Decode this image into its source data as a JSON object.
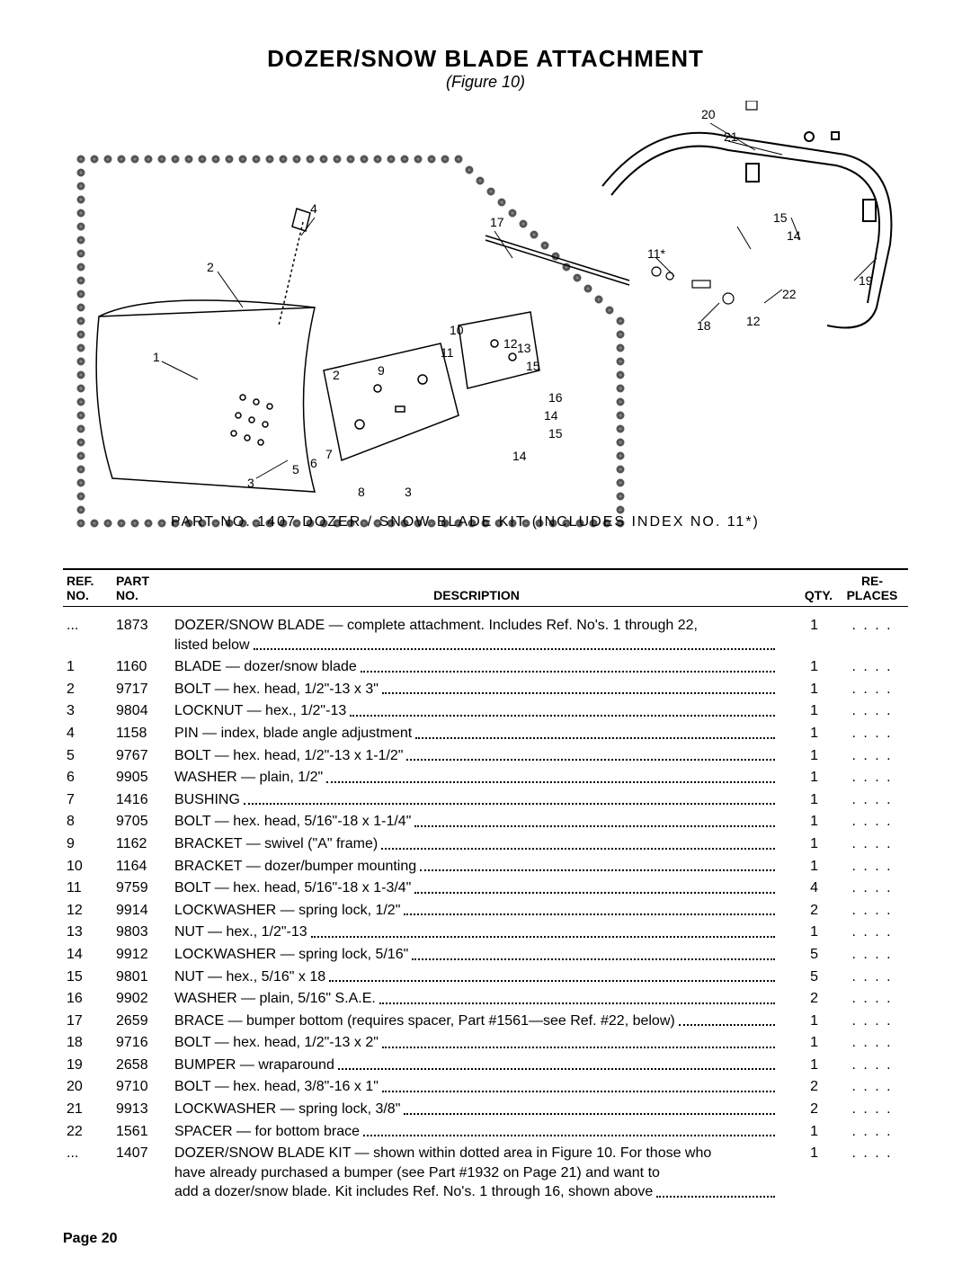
{
  "header": {
    "title": "DOZER/SNOW BLADE ATTACHMENT",
    "subtitle": "(Figure 10)"
  },
  "diagram": {
    "caption": "PART  NO.  1407  DOZER / SNOW  BLADE  KIT   (INCLUDES  INDEX  NO. 11*)",
    "callouts": [
      "1",
      "2",
      "3",
      "4",
      "5",
      "6",
      "7",
      "8",
      "9",
      "10",
      "11",
      "11*",
      "12",
      "13",
      "14",
      "15",
      "16",
      "17",
      "18",
      "19",
      "20",
      "21",
      "22"
    ]
  },
  "table": {
    "columns": {
      "ref": "REF.\nNO.",
      "part": "PART\nNO.",
      "desc": "DESCRIPTION",
      "qty": "QTY.",
      "replaces": "RE-\nPLACES"
    },
    "rows": [
      {
        "ref": "...",
        "part": "1873",
        "desc": "DOZER/SNOW BLADE — complete attachment. Includes Ref. No's. 1 through 22,\nlisted below",
        "qty": "1",
        "replaces": ". . . ."
      },
      {
        "ref": "1",
        "part": "1160",
        "desc": "BLADE — dozer/snow blade",
        "qty": "1",
        "replaces": ". . . ."
      },
      {
        "ref": "2",
        "part": "9717",
        "desc": "BOLT — hex. head, 1/2\"-13 x 3\"",
        "qty": "1",
        "replaces": ". . . ."
      },
      {
        "ref": "3",
        "part": "9804",
        "desc": "LOCKNUT — hex., 1/2\"-13",
        "qty": "1",
        "replaces": ". . . ."
      },
      {
        "ref": "4",
        "part": "1158",
        "desc": "PIN — index, blade angle adjustment",
        "qty": "1",
        "replaces": ". . . ."
      },
      {
        "ref": "5",
        "part": "9767",
        "desc": "BOLT — hex. head, 1/2\"-13 x 1-1/2\"",
        "qty": "1",
        "replaces": ". . . ."
      },
      {
        "ref": "6",
        "part": "9905",
        "desc": "WASHER — plain, 1/2\"",
        "qty": "1",
        "replaces": ". . . ."
      },
      {
        "ref": "7",
        "part": "1416",
        "desc": "BUSHING",
        "qty": "1",
        "replaces": ". . . ."
      },
      {
        "ref": "8",
        "part": "9705",
        "desc": "BOLT — hex. head, 5/16\"-18 x 1-1/4\"",
        "qty": "1",
        "replaces": ". . . ."
      },
      {
        "ref": "9",
        "part": "1162",
        "desc": "BRACKET — swivel (\"A\" frame)",
        "qty": "1",
        "replaces": ". . . ."
      },
      {
        "ref": "10",
        "part": "1164",
        "desc": "BRACKET — dozer/bumper mounting",
        "qty": "1",
        "replaces": ". . . ."
      },
      {
        "ref": "11",
        "part": "9759",
        "desc": "BOLT — hex. head, 5/16\"-18 x 1-3/4\"",
        "qty": "4",
        "replaces": ". . . ."
      },
      {
        "ref": "12",
        "part": "9914",
        "desc": "LOCKWASHER — spring lock, 1/2\"",
        "qty": "2",
        "replaces": ". . . ."
      },
      {
        "ref": "13",
        "part": "9803",
        "desc": "NUT — hex., 1/2\"-13",
        "qty": "1",
        "replaces": ". . . ."
      },
      {
        "ref": "14",
        "part": "9912",
        "desc": "LOCKWASHER — spring lock, 5/16\"",
        "qty": "5",
        "replaces": ". . . ."
      },
      {
        "ref": "15",
        "part": "9801",
        "desc": "NUT — hex., 5/16\" x 18",
        "qty": "5",
        "replaces": ". . . ."
      },
      {
        "ref": "16",
        "part": "9902",
        "desc": "WASHER — plain, 5/16\" S.A.E.",
        "qty": "2",
        "replaces": ". . . ."
      },
      {
        "ref": "17",
        "part": "2659",
        "desc": "BRACE — bumper bottom (requires spacer, Part #1561—see Ref. #22, below)",
        "qty": "1",
        "replaces": ". . . ."
      },
      {
        "ref": "18",
        "part": "9716",
        "desc": "BOLT — hex. head, 1/2\"-13 x 2\"",
        "qty": "1",
        "replaces": ". . . ."
      },
      {
        "ref": "19",
        "part": "2658",
        "desc": "BUMPER — wraparound",
        "qty": "1",
        "replaces": ". . . ."
      },
      {
        "ref": "20",
        "part": "9710",
        "desc": "BOLT — hex. head, 3/8\"-16 x 1\"",
        "qty": "2",
        "replaces": ". . . ."
      },
      {
        "ref": "21",
        "part": "9913",
        "desc": "LOCKWASHER — spring lock, 3/8\"",
        "qty": "2",
        "replaces": ". . . ."
      },
      {
        "ref": "22",
        "part": "1561",
        "desc": "SPACER — for bottom brace",
        "qty": "1",
        "replaces": ". . . ."
      },
      {
        "ref": "...",
        "part": "1407",
        "desc": "DOZER/SNOW BLADE KIT — shown within dotted area in Figure 10. For those who\nhave already purchased a bumper (see Part #1932 on Page 21) and want to\nadd a dozer/snow blade. Kit includes Ref. No's. 1 through 16, shown above",
        "qty": "1",
        "replaces": ". . . ."
      }
    ]
  },
  "footer": {
    "page": "Page 20"
  }
}
